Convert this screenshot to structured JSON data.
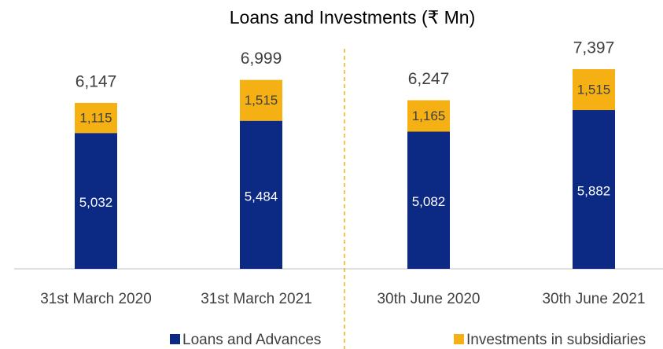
{
  "chart_data": {
    "type": "stacked_bar",
    "title": "Loans and Investments (₹ Mn)",
    "categories": [
      "31st March 2020",
      "31st March 2021",
      "30th June 2020",
      "30th June 2021"
    ],
    "series": [
      {
        "name": "Loans and Advances",
        "color": "#0c2a84",
        "values": [
          5032,
          5484,
          5082,
          5882
        ],
        "value_labels": [
          "5,032",
          "5,484",
          "5,082",
          "5,882"
        ]
      },
      {
        "name": "Investments in subsidiaries",
        "color": "#f5b014",
        "values": [
          1115,
          1515,
          1165,
          1515
        ],
        "value_labels": [
          "1,115",
          "1,515",
          "1,165",
          "1,515"
        ]
      }
    ],
    "totals": [
      6147,
      6999,
      6247,
      7397
    ],
    "total_labels": [
      "6,147",
      "6,999",
      "6,247",
      "7,397"
    ],
    "legend": "bottom"
  }
}
